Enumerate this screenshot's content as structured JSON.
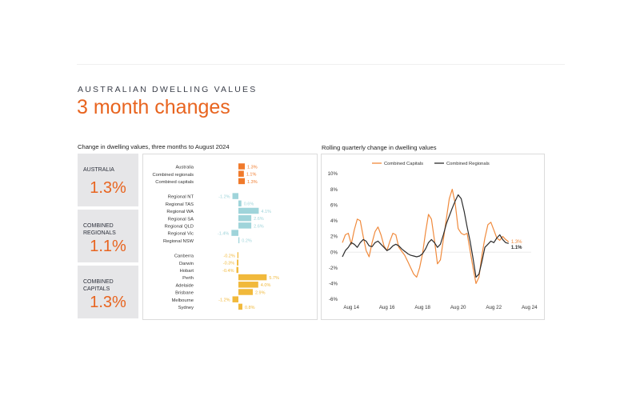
{
  "header": {
    "kicker": "AUSTRALIAN DWELLING VALUES",
    "title": "3 month changes"
  },
  "stats": [
    {
      "label_lines": [
        "AUSTRALIA"
      ],
      "value": "1.3%"
    },
    {
      "label_lines": [
        "COMBINED",
        "REGIONALS"
      ],
      "value": "1.1%"
    },
    {
      "label_lines": [
        "COMBINED",
        "CAPITALS"
      ],
      "value": "1.3%"
    }
  ],
  "colors": {
    "orange": "#f07a2b",
    "teal": "#9fd4da",
    "gold": "#f1b93b",
    "dark": "#2c2c2c",
    "line_orange": "#f08a3c",
    "accent": "#e8641f"
  },
  "chart_data": [
    {
      "type": "bar",
      "orientation": "horizontal",
      "title": "Change in dwelling values, three months to August 2024",
      "groups": [
        {
          "color": "orange",
          "items": [
            {
              "label": "Australia",
              "value": 1.3,
              "text": "1.3%"
            },
            {
              "label": "Combined regionals",
              "value": 1.1,
              "text": "1.1%"
            },
            {
              "label": "Combined capitals",
              "value": 1.3,
              "text": "1.3%"
            }
          ]
        },
        {
          "color": "teal",
          "items": [
            {
              "label": "Regional NT",
              "value": -1.2,
              "text": "-1.2%"
            },
            {
              "label": "Regional TAS",
              "value": 0.6,
              "text": "0.6%"
            },
            {
              "label": "Regional WA",
              "value": 4.1,
              "text": "4.1%"
            },
            {
              "label": "Regional SA",
              "value": 2.6,
              "text": "2.6%"
            },
            {
              "label": "Regional QLD",
              "value": 2.6,
              "text": "2.6%"
            },
            {
              "label": "Regional Vic",
              "value": -1.4,
              "text": "-1.4%"
            },
            {
              "label": "Regional NSW",
              "value": 0.2,
              "text": "0.2%"
            }
          ]
        },
        {
          "color": "gold",
          "items": [
            {
              "label": "Canberra",
              "value": -0.2,
              "text": "-0.2%"
            },
            {
              "label": "Darwin",
              "value": -0.3,
              "text": "-0.3%"
            },
            {
              "label": "Hobart",
              "value": -0.4,
              "text": "-0.4%"
            },
            {
              "label": "Perth",
              "value": 5.7,
              "text": "5.7%"
            },
            {
              "label": "Adelaide",
              "value": 4.0,
              "text": "4.0%"
            },
            {
              "label": "Brisbane",
              "value": 2.9,
              "text": "2.9%"
            },
            {
              "label": "Melbourne",
              "value": -1.2,
              "text": "-1.2%"
            },
            {
              "label": "Sydney",
              "value": 0.8,
              "text": "0.8%"
            }
          ]
        }
      ]
    },
    {
      "type": "line",
      "title": "Rolling quarterly change in dwelling values",
      "ylim": [
        -6,
        10
      ],
      "yticks": [
        "10%",
        "8%",
        "6%",
        "4%",
        "2%",
        "0%",
        "-2%",
        "-4%",
        "-6%"
      ],
      "xticks": [
        "Aug 14",
        "Aug 16",
        "Aug 18",
        "Aug 20",
        "Aug 22",
        "Aug 24"
      ],
      "xrange": [
        2014.0,
        2024.6
      ],
      "x_start": 2014.0,
      "x_step": 0.1667,
      "legend": "top-center",
      "end_labels": [
        "1.3%",
        "1.1%"
      ],
      "series": [
        {
          "name": "Combined Capitals",
          "color": "line_orange",
          "values": [
            1.2,
            2.2,
            2.4,
            1.0,
            2.8,
            4.2,
            4.0,
            2.0,
            0.2,
            -0.6,
            1.2,
            2.6,
            3.2,
            2.2,
            0.8,
            0.2,
            1.4,
            2.4,
            2.2,
            0.6,
            0.1,
            -0.4,
            -1.2,
            -2.0,
            -2.8,
            -3.2,
            -2.0,
            -0.2,
            2.5,
            4.8,
            4.2,
            1.5,
            -1.5,
            -1.0,
            1.6,
            4.2,
            6.8,
            8.0,
            6.2,
            3.0,
            2.4,
            2.2,
            2.4,
            0.2,
            -2.0,
            -4.0,
            -3.2,
            -0.4,
            1.8,
            3.5,
            3.8,
            2.8,
            1.8,
            1.5,
            2.0,
            1.6,
            1.3
          ]
        },
        {
          "name": "Combined Regionals",
          "color": "dark",
          "values": [
            -0.6,
            0.2,
            0.6,
            1.2,
            1.0,
            0.6,
            1.2,
            1.6,
            1.4,
            0.8,
            0.7,
            1.2,
            1.4,
            1.0,
            0.6,
            0.2,
            0.4,
            0.8,
            1.0,
            0.8,
            0.4,
            0.1,
            -0.2,
            -0.4,
            -0.5,
            -0.6,
            -0.5,
            -0.2,
            0.4,
            1.2,
            1.6,
            1.2,
            0.6,
            1.0,
            2.2,
            3.6,
            4.6,
            5.6,
            6.5,
            7.3,
            6.8,
            5.2,
            3.2,
            1.4,
            -0.8,
            -3.2,
            -2.8,
            -1.2,
            0.6,
            1.0,
            1.4,
            1.2,
            1.8,
            2.2,
            1.6,
            1.2,
            1.1
          ]
        }
      ]
    }
  ]
}
